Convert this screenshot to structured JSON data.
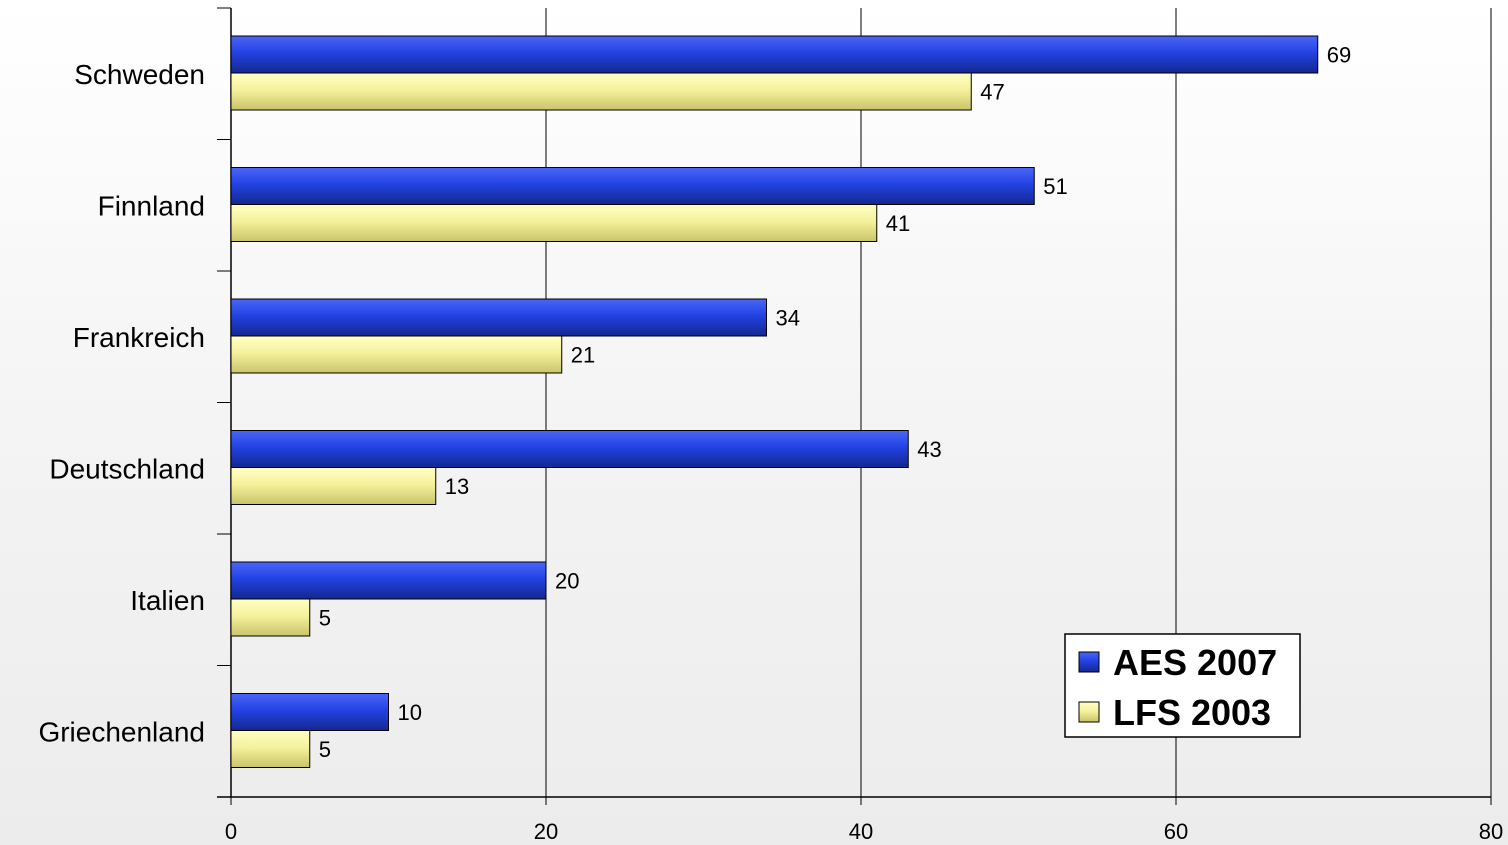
{
  "chart_data": {
    "type": "bar",
    "orientation": "horizontal",
    "categories": [
      "Schweden",
      "Finnland",
      "Frankreich",
      "Deutschland",
      "Italien",
      "Griechenland"
    ],
    "series": [
      {
        "name": "AES 2007",
        "color": "#2342e3",
        "values": [
          69,
          51,
          34,
          43,
          20,
          10
        ]
      },
      {
        "name": "LFS 2003",
        "color": "#f5f29c",
        "values": [
          47,
          41,
          21,
          13,
          5,
          5
        ]
      }
    ],
    "xlim": [
      0,
      80
    ],
    "xticks": [
      0,
      20,
      40,
      60,
      80
    ],
    "grid": "vertical",
    "legend_position": "bottom-right",
    "title": "",
    "xlabel": "",
    "ylabel": ""
  }
}
